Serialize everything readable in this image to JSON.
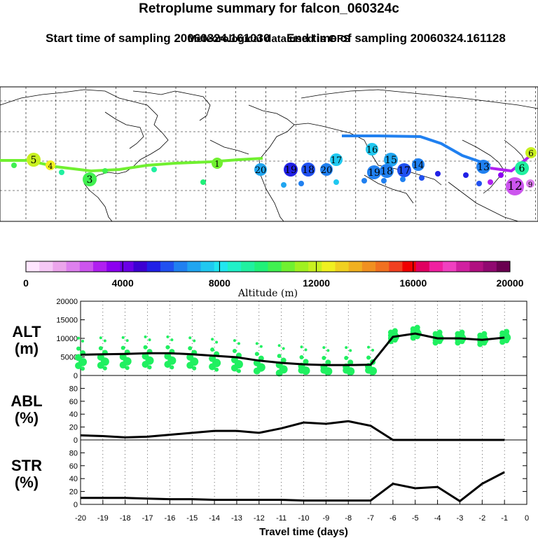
{
  "header": {
    "title": "Retroplume summary for falcon_060324c",
    "start_label": "Start time of sampling 20060324.161030",
    "end_label": "End time of sampling 20060324.161128",
    "met_label": "Meteorological data used is GFS"
  },
  "colorbar": {
    "ticks": [
      "0",
      "4000",
      "8000",
      "12000",
      "16000",
      "20000"
    ],
    "label": "Altitude (m)",
    "colors": [
      "#ffe6ff",
      "#f5c8f5",
      "#eba5eb",
      "#dd80ee",
      "#cc55ee",
      "#b020f0",
      "#8c00f0",
      "#6a00e6",
      "#3c00d2",
      "#2020e6",
      "#2050f0",
      "#2080f0",
      "#20a5f0",
      "#20c8f0",
      "#20e6f0",
      "#20f0c8",
      "#20f0a0",
      "#20f078",
      "#40f050",
      "#70f030",
      "#a0f020",
      "#c8f020",
      "#f0f020",
      "#f0d020",
      "#f0b020",
      "#f09020",
      "#f07020",
      "#f04020",
      "#f00000",
      "#e00060",
      "#f020a0",
      "#f040c0",
      "#d020a0",
      "#b01080",
      "#900870",
      "#6a0050"
    ]
  },
  "map_labels": [
    {
      "text": "20",
      "color": "#20a5f0"
    },
    {
      "text": "19",
      "color": "#2020e6"
    },
    {
      "text": "18",
      "color": "#2050f0"
    },
    {
      "text": "20",
      "color": "#2080f0"
    },
    {
      "text": "17",
      "color": "#20c8f0"
    },
    {
      "text": "16",
      "color": "#20c8f0"
    },
    {
      "text": "15",
      "color": "#20a5f0"
    },
    {
      "text": "19",
      "color": "#2080f0"
    },
    {
      "text": "18",
      "color": "#2080f0"
    },
    {
      "text": "17",
      "color": "#2050f0"
    },
    {
      "text": "14",
      "color": "#2080f0"
    },
    {
      "text": "13",
      "color": "#2080f0"
    },
    {
      "text": "12",
      "color": "#cc55ee"
    },
    {
      "text": "9",
      "color": "#dd80ee"
    },
    {
      "text": "6",
      "color": "#20f0a0"
    },
    {
      "text": "6",
      "color": "#c8f020"
    },
    {
      "text": "5",
      "color": "#c8f020"
    },
    {
      "text": "4",
      "color": "#f0f020"
    },
    {
      "text": "3",
      "color": "#40f050"
    },
    {
      "text": "1",
      "color": "#70f030"
    }
  ],
  "chart_data": [
    {
      "type": "line",
      "name": "ALT",
      "ylabel": "ALT\n(m)",
      "ylabel_lines": [
        "ALT",
        "(m)"
      ],
      "x": [
        -20,
        -19,
        -18,
        -17,
        -16,
        -15,
        -14,
        -13,
        -12,
        -11,
        -10,
        -9,
        -8,
        -7,
        -6,
        -5,
        -4,
        -3,
        -2,
        -1
      ],
      "values": [
        5600,
        5700,
        5800,
        6000,
        6000,
        5700,
        5300,
        4900,
        4000,
        3400,
        3000,
        2800,
        2800,
        2900,
        10400,
        11300,
        10000,
        10000,
        9600,
        10200
      ],
      "ylim": [
        0,
        20000
      ],
      "yticks": [
        "0",
        "5000",
        "10000",
        "15000",
        "20000"
      ],
      "scatter": "green dots show plume altitude distribution"
    },
    {
      "type": "line",
      "name": "ABL",
      "ylabel_lines": [
        "ABL",
        "(%)"
      ],
      "x": [
        -20,
        -19,
        -18,
        -17,
        -16,
        -15,
        -14,
        -13,
        -12,
        -11,
        -10,
        -9,
        -8,
        -7,
        -6,
        -5,
        -4,
        -3,
        -2,
        -1
      ],
      "values": [
        7,
        6,
        4,
        5,
        8,
        11,
        14,
        14,
        11,
        18,
        27,
        25,
        29,
        22,
        0,
        0,
        0,
        0,
        0,
        0
      ],
      "ylim": [
        0,
        100
      ],
      "yticks": [
        "0",
        "20",
        "40",
        "60",
        "80"
      ]
    },
    {
      "type": "line",
      "name": "STR",
      "ylabel_lines": [
        "STR",
        "(%)"
      ],
      "x": [
        -20,
        -19,
        -18,
        -17,
        -16,
        -15,
        -14,
        -13,
        -12,
        -11,
        -10,
        -9,
        -8,
        -7,
        -6,
        -5,
        -4,
        -3,
        -2,
        -1
      ],
      "values": [
        10,
        10,
        10,
        9,
        8,
        8,
        7,
        7,
        7,
        7,
        6,
        6,
        6,
        6,
        32,
        25,
        27,
        5,
        32,
        50
      ],
      "ylim": [
        0,
        100
      ],
      "yticks": [
        "0",
        "20",
        "40",
        "60",
        "80"
      ]
    }
  ],
  "xaxis": {
    "label": "Travel time (days)",
    "ticks": [
      "-20",
      "-19",
      "-18",
      "-17",
      "-16",
      "-15",
      "-14",
      "-13",
      "-12",
      "-11",
      "-10",
      "-9",
      "-8",
      "-7",
      "-6",
      "-5",
      "-4",
      "-3",
      "-2",
      "-1",
      "0"
    ]
  }
}
